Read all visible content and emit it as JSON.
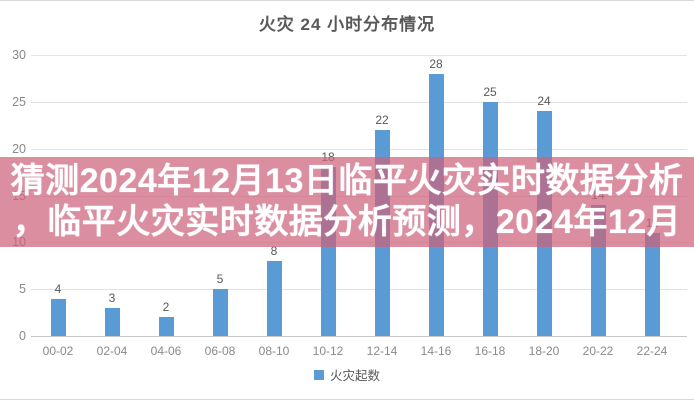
{
  "chart": {
    "title": "火灾 24 小时分布情况",
    "legend_label": "火灾起数",
    "colors": {
      "bar": "#5B9BD5",
      "overlay_pink": "#DA8FA0",
      "axis_text": "#8a8a8a",
      "label_text": "#595959"
    }
  },
  "chart_data": {
    "type": "bar",
    "title": "火灾 24 小时分布情况",
    "categories": [
      "00-02",
      "02-04",
      "04-06",
      "06-08",
      "08-10",
      "10-12",
      "12-14",
      "14-16",
      "16-18",
      "18-20",
      "20-22",
      "22-24"
    ],
    "values": [
      4,
      3,
      2,
      5,
      8,
      18,
      22,
      28,
      25,
      24,
      14,
      11
    ],
    "xlabel": "",
    "ylabel": "",
    "ylim": [
      0,
      30
    ],
    "yticks": [
      0,
      5,
      10,
      15,
      20,
      25,
      30
    ],
    "grid": true,
    "legend": [
      "火灾起数"
    ],
    "legend_position": "bottom"
  },
  "overlay": {
    "line1": "猜测2024年12月13日临平火灾实时数据分析",
    "line2": "，临平火灾实时数据分析预测，2024年12月"
  }
}
